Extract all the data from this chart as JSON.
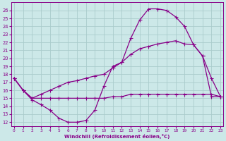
{
  "bg_color": "#cce8e8",
  "line_color": "#880088",
  "grid_color": "#b8d8d8",
  "xlabel": "Windchill (Refroidissement éolien,°C)",
  "ylabel_ticks": [
    12,
    13,
    14,
    15,
    16,
    17,
    18,
    19,
    20,
    21,
    22,
    23,
    24,
    25,
    26
  ],
  "xticks": [
    0,
    1,
    2,
    3,
    4,
    5,
    6,
    7,
    8,
    9,
    10,
    11,
    12,
    13,
    14,
    15,
    16,
    17,
    18,
    19,
    20,
    21,
    22,
    23
  ],
  "ylim": [
    11.5,
    27.0
  ],
  "xlim": [
    -0.3,
    23.3
  ],
  "curve1_x": [
    0,
    1,
    2,
    3,
    4,
    5,
    6,
    7,
    8,
    9,
    10,
    11,
    12,
    13,
    14,
    15,
    16,
    17,
    18,
    19,
    20,
    21,
    22,
    23
  ],
  "curve1_y": [
    17.5,
    16.0,
    14.8,
    14.2,
    13.5,
    12.5,
    12.0,
    12.0,
    12.2,
    13.5,
    16.5,
    19.0,
    19.5,
    22.5,
    24.8,
    26.2,
    26.2,
    26.0,
    25.2,
    24.0,
    21.7,
    20.3,
    17.5,
    15.2
  ],
  "curve2_x": [
    0,
    1,
    2,
    3,
    4,
    5,
    6,
    7,
    8,
    9,
    10,
    11,
    12,
    13,
    14,
    15,
    16,
    17,
    18,
    19,
    20,
    21,
    22,
    23
  ],
  "curve2_y": [
    17.5,
    16.0,
    15.0,
    15.0,
    15.0,
    15.0,
    15.0,
    15.0,
    15.0,
    15.0,
    15.0,
    15.2,
    15.2,
    15.5,
    15.5,
    15.5,
    15.5,
    15.5,
    15.5,
    15.5,
    15.5,
    15.5,
    15.5,
    15.2
  ],
  "curve3_x": [
    0,
    1,
    2,
    3,
    4,
    5,
    6,
    7,
    8,
    9,
    10,
    11,
    12,
    13,
    14,
    15,
    16,
    17,
    18,
    19,
    20,
    21,
    22,
    23
  ],
  "curve3_y": [
    17.5,
    16.0,
    15.0,
    15.5,
    16.0,
    16.5,
    17.0,
    17.2,
    17.5,
    17.8,
    18.0,
    18.8,
    19.5,
    20.5,
    21.2,
    21.5,
    21.8,
    22.0,
    22.2,
    21.8,
    21.7,
    20.3,
    15.2,
    15.2
  ]
}
